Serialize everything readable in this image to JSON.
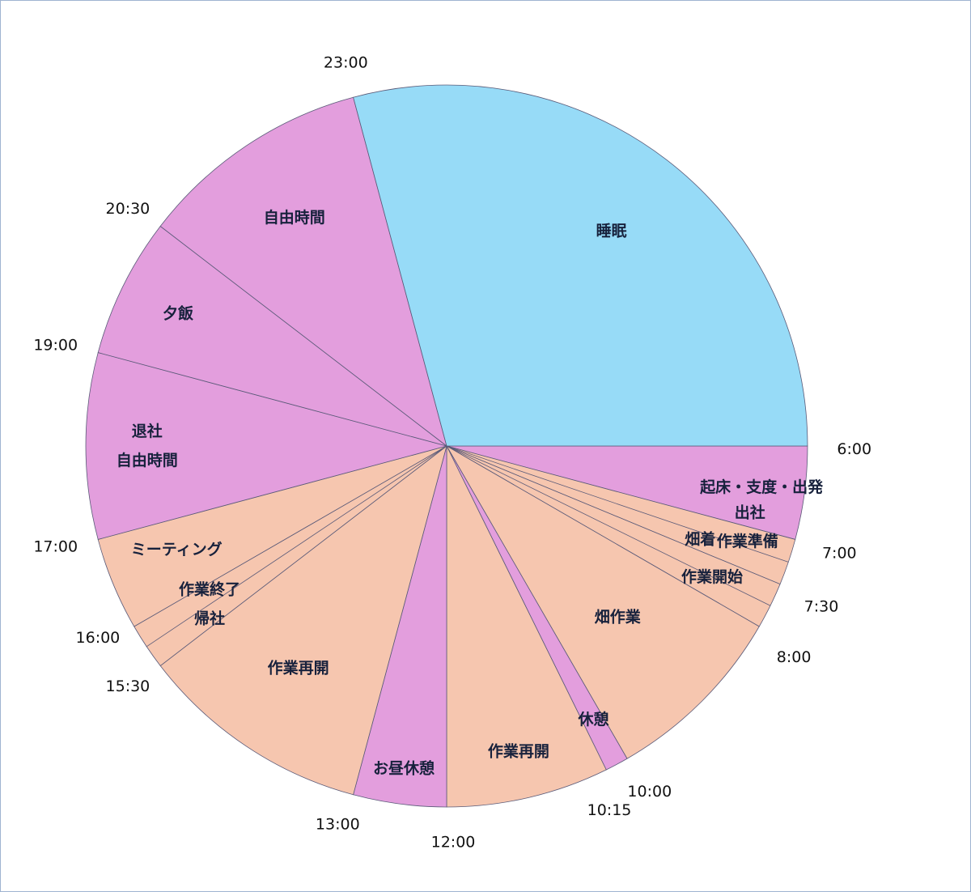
{
  "chart_data": {
    "type": "pie",
    "title": "",
    "unit": "hours",
    "start_angle_label": "6:00",
    "direction": "clockwise",
    "colors": {
      "sleep": "#97dbf7",
      "personal": "#e39edd",
      "work": "#f6c6af",
      "stroke": "#5a5a78"
    },
    "slices": [
      {
        "name": "起床・支度・出発",
        "start": "6:00",
        "end": "7:00",
        "hours": 1.0,
        "category": "personal",
        "label_lines": [
          "起床・支度・出発"
        ]
      },
      {
        "name": "出社",
        "start": "7:00",
        "end": "7:00",
        "hours": 0,
        "category": "personal",
        "label_lines": [
          "出社"
        ]
      },
      {
        "name": "作業準備",
        "start": "7:00",
        "end": "7:30",
        "hours": 0.5,
        "category": "work",
        "label_lines": [
          "作業準備"
        ]
      },
      {
        "name": "畑着",
        "start": "7:30",
        "end": "7:30",
        "hours": 0,
        "category": "work",
        "label_lines": [
          "畑着"
        ]
      },
      {
        "name": "作業開始",
        "start": "7:30",
        "end": "8:00",
        "hours": 0.5,
        "category": "work",
        "label_lines": [
          "作業開始"
        ]
      },
      {
        "name": "畑作業",
        "start": "8:00",
        "end": "10:00",
        "hours": 2.0,
        "category": "work",
        "label_lines": [
          "畑作業"
        ]
      },
      {
        "name": "休憩",
        "start": "10:00",
        "end": "10:15",
        "hours": 0.25,
        "category": "personal",
        "label_lines": [
          "休憩"
        ]
      },
      {
        "name": "作業再開",
        "start": "10:15",
        "end": "12:00",
        "hours": 1.75,
        "category": "work",
        "label_lines": [
          "作業再開"
        ]
      },
      {
        "name": "お昼休憩",
        "start": "12:00",
        "end": "13:00",
        "hours": 1.0,
        "category": "personal",
        "label_lines": [
          "お昼休憩"
        ]
      },
      {
        "name": "作業再開",
        "start": "13:00",
        "end": "15:30",
        "hours": 2.5,
        "category": "work",
        "label_lines": [
          "作業再開"
        ]
      },
      {
        "name": "作業終了・帰社",
        "start": "15:30",
        "end": "16:00",
        "hours": 0.5,
        "category": "work",
        "label_lines": [
          "作業終了",
          "帰社"
        ]
      },
      {
        "name": "ミーティング",
        "start": "16:00",
        "end": "17:00",
        "hours": 1.0,
        "category": "work",
        "label_lines": [
          "ミーティング"
        ]
      },
      {
        "name": "退社・自由時間",
        "start": "17:00",
        "end": "19:00",
        "hours": 2.0,
        "category": "personal",
        "label_lines": [
          "退社",
          "自由時間"
        ]
      },
      {
        "name": "夕飯",
        "start": "19:00",
        "end": "20:30",
        "hours": 1.5,
        "category": "personal",
        "label_lines": [
          "夕飯"
        ]
      },
      {
        "name": "自由時間",
        "start": "20:30",
        "end": "23:00",
        "hours": 2.5,
        "category": "personal",
        "label_lines": [
          "自由時間"
        ]
      },
      {
        "name": "睡眠",
        "start": "23:00",
        "end": "6:00",
        "hours": 7.0,
        "category": "sleep",
        "label_lines": [
          "睡眠"
        ]
      }
    ],
    "boundary_labels": [
      "6:00",
      "7:00",
      "7:30",
      "8:00",
      "10:00",
      "10:15",
      "12:00",
      "13:00",
      "15:30",
      "16:00",
      "17:00",
      "19:00",
      "20:30",
      "23:00"
    ],
    "extra_divider_times": [
      "7:15",
      "7:45",
      "15:45"
    ],
    "legend": "none"
  }
}
